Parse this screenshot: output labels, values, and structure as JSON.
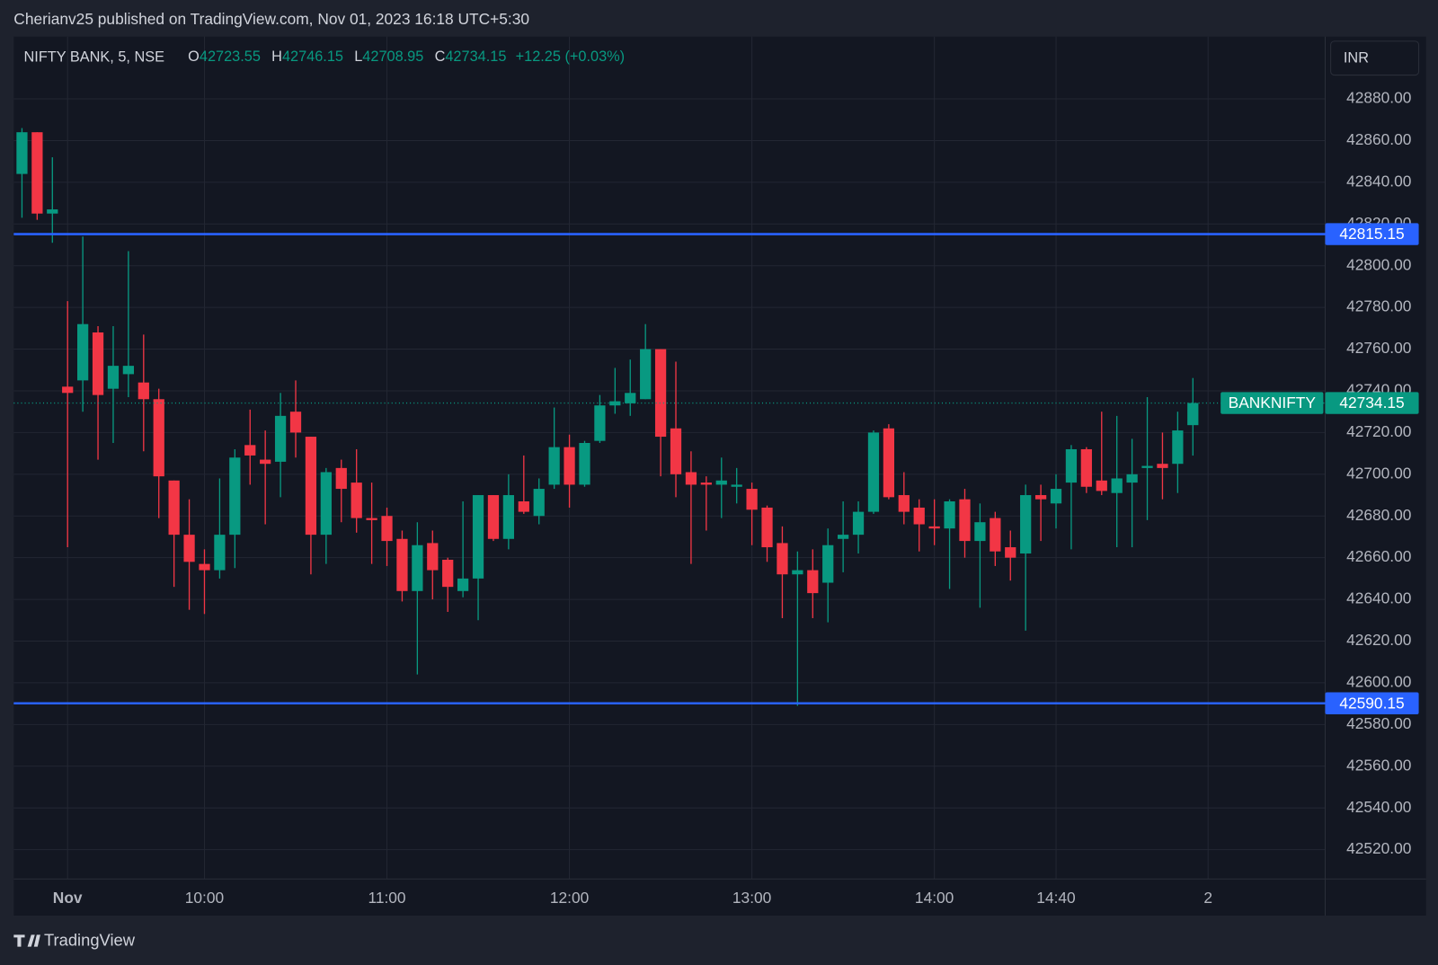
{
  "header": {
    "byline": "Cherianv25 published on TradingView.com, Nov 01, 2023 16:18 UTC+5:30",
    "currency": "INR",
    "footer": "TradingView"
  },
  "chart_data": {
    "type": "candlestick",
    "symbol": "NIFTY BANK, 5, NSE",
    "ohlc_labels": [
      "O",
      "H",
      "L",
      "C"
    ],
    "change": "+12.25 (+0.03%)",
    "price_label": "BANKNIFTY",
    "up_color": "#089981",
    "down_color": "#f23645",
    "open": [
      42844,
      42864,
      42825,
      42742,
      42745,
      42768,
      42741,
      42748,
      42744,
      42736,
      42697,
      42671,
      42657,
      42654,
      42671,
      42714,
      42707,
      42706,
      42730,
      42718,
      42671,
      42703,
      42696,
      42679,
      42680,
      42669,
      42644,
      42667,
      42659,
      42644,
      42650,
      42690,
      42669,
      42687,
      42680,
      42695,
      42713,
      42695,
      42716,
      42733,
      42734,
      42736,
      42760,
      42722,
      42701,
      42696,
      42695,
      42694,
      42693,
      42684,
      42667,
      42652,
      42654,
      42648,
      42669,
      42671,
      42682,
      42722,
      42690,
      42684,
      42675,
      42674,
      42688,
      42668,
      42679,
      42665,
      42662,
      42690,
      42686,
      42696,
      42712,
      42697,
      42691,
      42696,
      42703,
      42705,
      42705,
      42723.55
    ],
    "high": [
      42866,
      42864,
      42852,
      42783,
      42814,
      42771,
      42771,
      42807,
      42767,
      42741,
      42697,
      42688,
      42664,
      42698,
      42712,
      42731,
      42721,
      42739,
      42745,
      42718,
      42703,
      42707,
      42712,
      42696,
      42684,
      42673,
      42677,
      42673,
      42660,
      42687,
      42690,
      42690,
      42700,
      42709,
      42698,
      42732,
      42719,
      42716,
      42738,
      42751,
      42755,
      42772,
      42760,
      42754,
      42711,
      42699,
      42708,
      42703,
      42696,
      42685,
      42675,
      42663,
      42664,
      42674,
      42687,
      42687,
      42721,
      42724,
      42701,
      42688,
      42688,
      42688,
      42693,
      42686,
      42682,
      42673,
      42695,
      42695,
      42700,
      42714,
      42713,
      42730,
      42728,
      42717,
      42737,
      42720,
      42730,
      42746.15
    ],
    "low": [
      42823,
      42822,
      42811,
      42665,
      42730,
      42707,
      42715,
      42737,
      42711,
      42679,
      42646,
      42635,
      42633,
      42650,
      42655,
      42695,
      42676,
      42689,
      42708,
      42652,
      42657,
      42677,
      42672,
      42657,
      42656,
      42639,
      42604,
      42640,
      42634,
      42641,
      42630,
      42668,
      42664,
      42681,
      42676,
      42693,
      42684,
      42694,
      42715,
      42729,
      42728,
      42736,
      42699,
      42689,
      42657,
      42673,
      42679,
      42686,
      42666,
      42658,
      42631,
      42589,
      42631,
      42629,
      42653,
      42662,
      42681,
      42688,
      42676,
      42663,
      42666,
      42645,
      42660,
      42636,
      42656,
      42649,
      42625,
      42668,
      42674,
      42664,
      42691,
      42690,
      42665,
      42665,
      42678,
      42688,
      42691,
      42708.95
    ],
    "close": [
      42864,
      42825,
      42827,
      42739,
      42772,
      42738,
      42752,
      42752,
      42736,
      42699,
      42671,
      42658,
      42654,
      42671,
      42708,
      42709,
      42705,
      42728,
      42720,
      42671,
      42701,
      42693,
      42679,
      42678,
      42668,
      42644,
      42666,
      42654,
      42646,
      42650,
      42690,
      42669,
      42690,
      42682,
      42693,
      42713,
      42695,
      42715,
      42733,
      42735,
      42739,
      42760,
      42718,
      42700,
      42695,
      42695,
      42697,
      42695,
      42683,
      42665,
      42652,
      42654,
      42643,
      42666,
      42671,
      42682,
      42720,
      42689,
      42682,
      42676,
      42674,
      42687,
      42668,
      42677,
      42663,
      42660,
      42690,
      42688,
      42693,
      42712,
      42694,
      42692,
      42698,
      42700,
      42704,
      42703,
      42721,
      42734.15
    ],
    "hlines": [
      {
        "value": 42815.15,
        "color": "#2962ff"
      },
      {
        "value": 42590.15,
        "color": "#2962ff"
      }
    ],
    "xlim": [
      -0.54,
      85.7
    ],
    "xticks": [
      {
        "value": 3,
        "label": "Nov"
      },
      {
        "value": 12,
        "label": "10:00"
      },
      {
        "value": 24,
        "label": "11:00"
      },
      {
        "value": 36,
        "label": "12:00"
      },
      {
        "value": 48,
        "label": "13:00"
      },
      {
        "value": 60,
        "label": "14:00"
      },
      {
        "value": 68,
        "label": "14:40"
      },
      {
        "value": 78,
        "label": "2"
      }
    ],
    "ylim": [
      42505.95,
      42909.85
    ],
    "yticks": [
      {
        "value": 42520,
        "label": "42520.00"
      },
      {
        "value": 42540,
        "label": "42540.00"
      },
      {
        "value": 42560,
        "label": "42560.00"
      },
      {
        "value": 42580,
        "label": "42580.00"
      },
      {
        "value": 42600,
        "label": "42600.00"
      },
      {
        "value": 42620,
        "label": "42620.00"
      },
      {
        "value": 42640,
        "label": "42640.00"
      },
      {
        "value": 42660,
        "label": "42660.00"
      },
      {
        "value": 42680,
        "label": "42680.00"
      },
      {
        "value": 42700,
        "label": "42700.00"
      },
      {
        "value": 42720,
        "label": "42720.00"
      },
      {
        "value": 42740,
        "label": "42740.00"
      },
      {
        "value": 42760,
        "label": "42760.00"
      },
      {
        "value": 42780,
        "label": "42780.00"
      },
      {
        "value": 42800,
        "label": "42800.00"
      },
      {
        "value": 42820,
        "label": "42820.00"
      },
      {
        "value": 42840,
        "label": "42840.00"
      },
      {
        "value": 42860,
        "label": "42860.00"
      },
      {
        "value": 42880,
        "label": "42880.00"
      }
    ],
    "grid": true
  }
}
